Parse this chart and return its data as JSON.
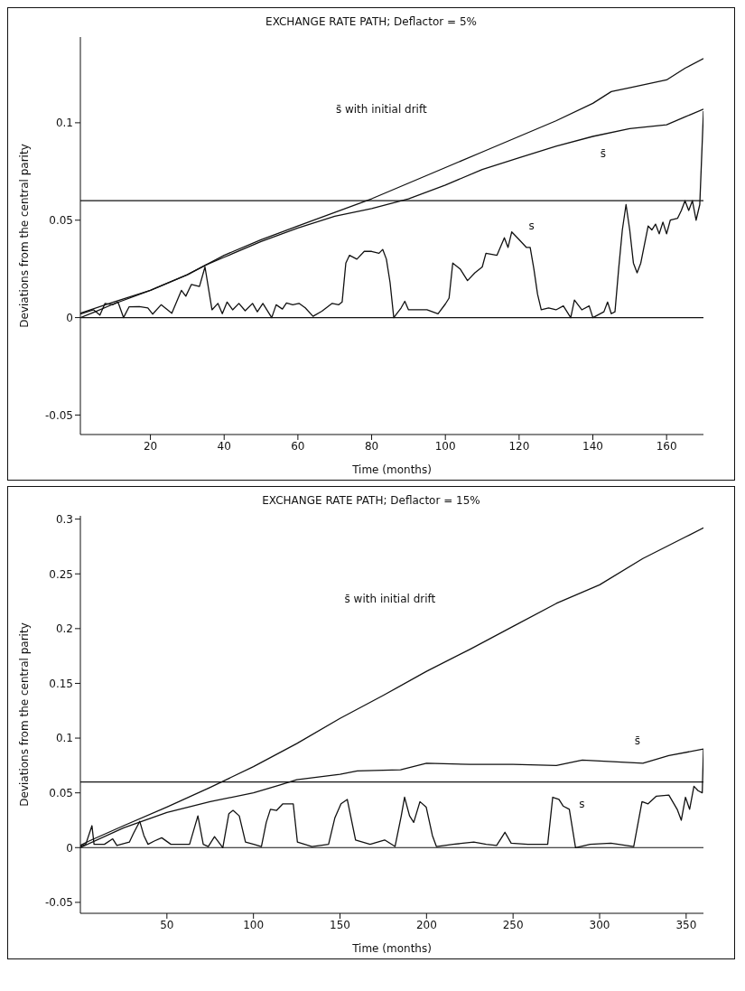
{
  "chart_data": [
    {
      "type": "line",
      "title": "EXCHANGE RATE PATH; Deflactor = 5%",
      "xlabel": "Time (months)",
      "ylabel": "Deviations from the central parity",
      "xlim": [
        1,
        170
      ],
      "xticks": [
        20,
        40,
        60,
        80,
        100,
        120,
        140,
        160
      ],
      "ylim": [
        -0.06,
        0.144
      ],
      "yticks": [
        -0.05,
        0,
        0.05,
        0.1
      ],
      "marker": "none",
      "series": [
        {
          "color": "#111111",
          "x": [
            1,
            10,
            20,
            30,
            35,
            40,
            50,
            60,
            70,
            80,
            90,
            100,
            110,
            120,
            130,
            140,
            145,
            150,
            160,
            165,
            170
          ],
          "values": [
            0.0023,
            0.008,
            0.014,
            0.022,
            0.027,
            0.032,
            0.04,
            0.047,
            0.054,
            0.061,
            0.069,
            0.077,
            0.085,
            0.093,
            0.101,
            0.11,
            0.116,
            0.118,
            0.122,
            0.128,
            0.133
          ]
        },
        {
          "name": "s̄",
          "color": "#111111",
          "x": [
            1,
            5,
            10,
            20,
            30,
            35,
            40,
            50,
            60,
            70,
            80,
            90,
            100,
            110,
            120,
            130,
            140,
            150,
            160,
            165,
            170
          ],
          "values": [
            0,
            0.003,
            0.007,
            0.014,
            0.022,
            0.027,
            0.031,
            0.039,
            0.046,
            0.052,
            0.056,
            0.061,
            0.068,
            0.076,
            0.082,
            0.088,
            0.093,
            0.097,
            0.099,
            0.103,
            0.107
          ]
        },
        {
          "name": "s",
          "color": "#111111",
          "x": [
            1,
            4.6,
            6.3,
            7.7,
            9.7,
            11.2,
            12.7,
            14.2,
            17,
            19.3,
            20.6,
            22.9,
            25.8,
            28.4,
            29.6,
            31.1,
            33.3,
            34.8,
            36.7,
            38.3,
            39.5,
            40.8,
            42.3,
            44,
            45.7,
            47.7,
            49,
            50.5,
            52.9,
            54.1,
            55.8,
            56.9,
            58.6,
            60.3,
            62,
            64.1,
            66.5,
            69.3,
            71.1,
            72,
            73,
            74,
            76,
            78,
            80,
            82,
            83,
            84,
            85,
            86,
            88,
            89,
            90,
            95,
            98,
            100,
            101,
            102,
            104,
            106,
            108,
            110,
            111,
            114,
            116,
            117,
            118,
            120,
            122,
            123,
            124,
            125,
            126,
            128,
            130,
            132,
            134,
            135,
            137,
            139,
            140,
            143,
            144,
            145,
            146,
            147,
            148,
            149,
            150,
            151,
            152,
            153,
            155,
            156,
            157,
            158,
            159,
            160,
            161,
            163,
            164,
            165,
            166,
            167,
            168,
            169,
            170
          ],
          "values": [
            0.0018,
            0.004,
            0.0013,
            0.0073,
            0.0066,
            0.008,
            0,
            0.0055,
            0.0057,
            0.005,
            0.0018,
            0.0066,
            0.0022,
            0.014,
            0.011,
            0.017,
            0.016,
            0.026,
            0.004,
            0.0073,
            0.002,
            0.008,
            0.004,
            0.0073,
            0.0035,
            0.0073,
            0.003,
            0.0073,
            0,
            0.0066,
            0.0044,
            0.0075,
            0.0066,
            0.0073,
            0.005,
            0.0007,
            0.0033,
            0.0073,
            0.0066,
            0.008,
            0.028,
            0.032,
            0.03,
            0.034,
            0.034,
            0.033,
            0.035,
            0.03,
            0.018,
            0,
            0.005,
            0.0084,
            0.004,
            0.004,
            0.002,
            0.007,
            0.01,
            0.028,
            0.025,
            0.019,
            0.023,
            0.026,
            0.033,
            0.032,
            0.041,
            0.036,
            0.044,
            0.04,
            0.036,
            0.036,
            0.025,
            0.012,
            0.004,
            0.005,
            0.004,
            0.006,
            0,
            0.009,
            0.004,
            0.006,
            0,
            0.003,
            0.008,
            0.002,
            0.003,
            0.025,
            0.045,
            0.058,
            0.045,
            0.028,
            0.023,
            0.028,
            0.047,
            0.045,
            0.048,
            0.043,
            0.049,
            0.043,
            0.05,
            0.051,
            0.055,
            0.06,
            0.055,
            0.06,
            0.05,
            0.058,
            0.106
          ]
        }
      ],
      "ref_lines": [
        {
          "axis": "y",
          "value": 0,
          "color": "#111111"
        },
        {
          "axis": "y",
          "value": 0.06,
          "color": "#111111"
        }
      ],
      "annotations": [
        "s̄ with initial drift"
      ]
    },
    {
      "type": "line",
      "title": "EXCHANGE RATE PATH; Deflactor = 15%",
      "xlabel": "Time (months)",
      "ylabel": "Deviations from the central parity",
      "xlim": [
        0,
        360
      ],
      "xticks": [
        50,
        100,
        150,
        200,
        250,
        300,
        350
      ],
      "ylim": [
        -0.06,
        0.303
      ],
      "yticks": [
        -0.05,
        0,
        0.05,
        0.1,
        0.15,
        0.2,
        0.25,
        0.3
      ],
      "marker": "none",
      "series": [
        {
          "color": "#111111",
          "x": [
            0,
            5,
            25,
            50,
            75,
            100,
            125,
            150,
            175,
            200,
            225,
            250,
            275,
            300,
            325,
            350,
            360
          ],
          "values": [
            0.002,
            0.006,
            0.02,
            0.037,
            0.055,
            0.074,
            0.095,
            0.118,
            0.139,
            0.161,
            0.181,
            0.202,
            0.223,
            0.24,
            0.264,
            0.284,
            0.292
          ]
        },
        {
          "name": "s̄",
          "color": "#111111",
          "x": [
            0,
            25,
            50,
            75,
            100,
            115,
            125,
            150,
            160,
            185,
            200,
            225,
            250,
            275,
            290,
            325,
            340,
            360
          ],
          "values": [
            0,
            0.018,
            0.032,
            0.042,
            0.05,
            0.057,
            0.062,
            0.067,
            0.07,
            0.071,
            0.077,
            0.076,
            0.076,
            0.075,
            0.08,
            0.077,
            0.084,
            0.09
          ]
        },
        {
          "name": "s",
          "color": "#111111",
          "x": [
            0,
            3.1,
            6.7,
            7.9,
            13.9,
            18.7,
            21.1,
            28.3,
            30.7,
            34.3,
            36.7,
            39.1,
            42.7,
            47,
            52.3,
            63.1,
            67.9,
            71,
            73.9,
            77.5,
            82.3,
            85.8,
            88.2,
            91.8,
            95.4,
            100.2,
            104.6,
            107.4,
            109.8,
            113.4,
            117,
            123,
            125.4,
            133.8,
            143.4,
            147,
            150.6,
            154.2,
            159,
            167.4,
            175.8,
            181.8,
            185.4,
            187.3,
            190.2,
            192.6,
            196.2,
            199.8,
            203.4,
            205.7,
            215.3,
            227.3,
            234.5,
            240.5,
            245.3,
            248.9,
            258.5,
            270,
            272.9,
            276.5,
            278.9,
            282.5,
            286.1,
            294.5,
            306.5,
            319.7,
            324.5,
            328,
            332.8,
            340,
            344.8,
            347.2,
            349.6,
            352,
            354.5,
            356.9,
            359.3,
            360
          ],
          "values": [
            0.001,
            0.003,
            0.02,
            0.003,
            0.003,
            0.008,
            0.002,
            0.005,
            0.013,
            0.024,
            0.011,
            0.003,
            0.006,
            0.009,
            0.003,
            0.003,
            0.029,
            0.003,
            0.001,
            0.01,
            0,
            0.031,
            0.034,
            0.029,
            0.005,
            0.003,
            0.001,
            0.023,
            0.035,
            0.034,
            0.04,
            0.04,
            0.005,
            0.001,
            0.003,
            0.027,
            0.04,
            0.044,
            0.007,
            0.003,
            0.007,
            0.001,
            0.029,
            0.046,
            0.029,
            0.023,
            0.042,
            0.037,
            0.011,
            0.001,
            0.003,
            0.005,
            0.003,
            0.002,
            0.014,
            0.004,
            0.003,
            0.003,
            0.046,
            0.044,
            0.038,
            0.035,
            0,
            0.003,
            0.004,
            0.001,
            0.042,
            0.04,
            0.047,
            0.048,
            0.035,
            0.025,
            0.046,
            0.035,
            0.056,
            0.052,
            0.05,
            0.09
          ]
        }
      ],
      "ref_lines": [
        {
          "axis": "y",
          "value": 0,
          "color": "#111111"
        },
        {
          "axis": "y",
          "value": 0.06,
          "color": "#111111"
        }
      ],
      "annotations": [
        "s̄ with initial drift"
      ]
    }
  ]
}
